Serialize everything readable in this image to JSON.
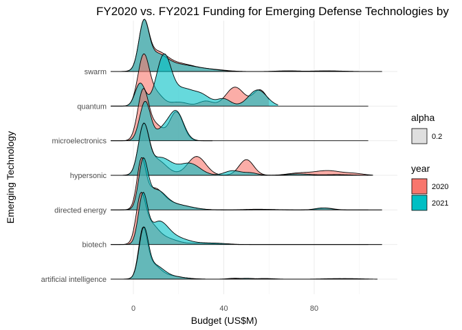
{
  "chart_data": {
    "type": "ridgeline",
    "title": "FY2020 vs. FY2021 Funding for Emerging Defense Technologies by",
    "xlabel": "Budget (US$M)",
    "ylabel": "Emerging Technology",
    "xlim": [
      -10,
      110
    ],
    "x_ticks": [
      0,
      40,
      80
    ],
    "x_tick_labels": [
      "0",
      "40",
      "80"
    ],
    "fill_alpha": 0.2,
    "categories": [
      "artificial intelligence",
      "biotech",
      "directed energy",
      "hypersonic",
      "microelectronics",
      "quantum",
      "swarm"
    ],
    "legend_alpha": {
      "title": "alpha",
      "items": [
        {
          "label": "0.2",
          "color": "#d9d9d9"
        }
      ]
    },
    "legend_year": {
      "title": "year",
      "items": [
        {
          "label": "2020",
          "color": "#F8766D"
        },
        {
          "label": "2021",
          "color": "#00BFC4"
        }
      ]
    },
    "series": [
      {
        "category": "artificial intelligence",
        "year": "2020",
        "xmax": 108,
        "peaks": [
          [
            4.2,
            1.0,
            1.9
          ],
          [
            8,
            0.3,
            3.5
          ],
          [
            15,
            0.08,
            6
          ],
          [
            45,
            0.02,
            3
          ],
          [
            58,
            0.015,
            4
          ],
          [
            90,
            0.012,
            6
          ]
        ]
      },
      {
        "category": "artificial intelligence",
        "year": "2021",
        "xmax": 106,
        "peaks": [
          [
            4.5,
            1.0,
            2.0
          ],
          [
            9,
            0.28,
            4
          ],
          [
            16,
            0.06,
            6
          ],
          [
            50,
            0.018,
            4
          ],
          [
            95,
            0.012,
            6
          ]
        ]
      },
      {
        "category": "biotech",
        "year": "2020",
        "xmax": 110,
        "peaks": [
          [
            3.2,
            0.97,
            2.0
          ],
          [
            7,
            0.45,
            3.5
          ],
          [
            14,
            0.15,
            5
          ],
          [
            30,
            0.03,
            6
          ]
        ]
      },
      {
        "category": "biotech",
        "year": "2021",
        "xmax": 110,
        "peaks": [
          [
            4.2,
            1.0,
            2.0
          ],
          [
            11,
            0.42,
            4
          ],
          [
            18,
            0.15,
            6
          ],
          [
            35,
            0.03,
            6
          ]
        ]
      },
      {
        "category": "directed energy",
        "year": "2020",
        "xmax": 110,
        "peaks": [
          [
            3.5,
            0.95,
            1.9
          ],
          [
            9,
            0.4,
            4
          ],
          [
            17,
            0.13,
            7
          ],
          [
            55,
            0.015,
            6
          ],
          [
            85,
            0.04,
            3.5
          ]
        ]
      },
      {
        "category": "directed energy",
        "year": "2021",
        "xmax": 110,
        "peaks": [
          [
            4.3,
            1.0,
            2.0
          ],
          [
            10,
            0.38,
            4
          ],
          [
            18,
            0.12,
            7
          ],
          [
            60,
            0.01,
            5
          ],
          [
            84,
            0.045,
            3.5
          ]
        ]
      },
      {
        "category": "hypersonic",
        "year": "2020",
        "xmax": 106,
        "peaks": [
          [
            4.5,
            0.85,
            2.3
          ],
          [
            10,
            0.3,
            4.5
          ],
          [
            28,
            0.36,
            4
          ],
          [
            50,
            0.3,
            3.2
          ],
          [
            73,
            0.04,
            5
          ],
          [
            86,
            0.09,
            6
          ],
          [
            98,
            0.03,
            4
          ]
        ]
      },
      {
        "category": "hypersonic",
        "year": "2021",
        "xmax": 106,
        "peaks": [
          [
            4.5,
            1.0,
            2.3
          ],
          [
            12,
            0.38,
            5
          ],
          [
            25,
            0.25,
            4.5
          ],
          [
            44,
            0.1,
            3.5
          ],
          [
            52,
            0.05,
            3
          ],
          [
            73,
            0.03,
            5
          ],
          [
            90,
            0.015,
            6
          ]
        ]
      },
      {
        "category": "microelectronics",
        "year": "2020",
        "xmax": 35,
        "peaks": [
          [
            4.3,
            1.0,
            2.4
          ],
          [
            10,
            0.3,
            3
          ],
          [
            19,
            0.58,
            3
          ]
        ]
      },
      {
        "category": "microelectronics",
        "year": "2021",
        "xmax": 35,
        "peaks": [
          [
            5.2,
            0.75,
            2.4
          ],
          [
            13,
            0.2,
            3
          ],
          [
            19,
            0.55,
            3.2
          ]
        ]
      },
      {
        "category": "quantum",
        "year": "2020",
        "xmax": 60,
        "peaks": [
          [
            4.5,
            1.0,
            2.5
          ],
          [
            10,
            0.25,
            3
          ],
          [
            20,
            0.08,
            4
          ],
          [
            32,
            0.1,
            3
          ],
          [
            45,
            0.38,
            4
          ],
          [
            56,
            0.32,
            3
          ]
        ]
      },
      {
        "category": "quantum",
        "year": "2021",
        "xmax": 64,
        "peaks": [
          [
            3,
            0.45,
            2.2
          ],
          [
            13.5,
            1.0,
            3.3
          ],
          [
            22,
            0.3,
            4
          ],
          [
            30,
            0.22,
            4
          ],
          [
            40,
            0.14,
            3
          ],
          [
            55,
            0.32,
            4
          ]
        ]
      },
      {
        "category": "swarm",
        "year": "2020",
        "xmax": 110,
        "peaks": [
          [
            4.6,
            1.0,
            2.2
          ],
          [
            10,
            0.4,
            4.5
          ],
          [
            20,
            0.18,
            7
          ],
          [
            35,
            0.04,
            6
          ],
          [
            68,
            0.015,
            5
          ],
          [
            85,
            0.015,
            6
          ]
        ]
      },
      {
        "category": "swarm",
        "year": "2021",
        "xmax": 110,
        "peaks": [
          [
            4.6,
            1.0,
            2.2
          ],
          [
            10,
            0.35,
            4.5
          ],
          [
            20,
            0.15,
            7
          ],
          [
            33,
            0.04,
            6
          ],
          [
            70,
            0.012,
            5
          ],
          [
            88,
            0.012,
            6
          ]
        ]
      }
    ]
  }
}
